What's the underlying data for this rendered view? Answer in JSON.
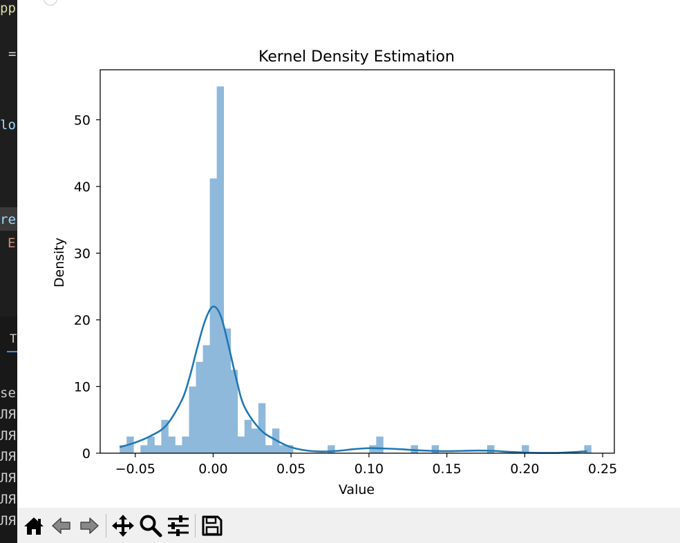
{
  "editor": {
    "fragments": [
      "pp",
      "=",
      "lo",
      "re",
      "E"
    ],
    "terminal_tab": "T",
    "terminal_lines": [
      "se",
      "ЛЯ",
      "ЛЯ",
      "ЛЯ",
      "ЛЯ",
      "ЛЯ",
      "ЛЯ"
    ]
  },
  "toolbar": {
    "buttons": [
      "home-icon",
      "back-icon",
      "forward-icon",
      "pan-icon",
      "zoom-icon",
      "configure-icon",
      "save-icon"
    ]
  },
  "chart_data": {
    "type": "bar",
    "title": "Kernel Density Estimation",
    "xlabel": "Value",
    "ylabel": "Density",
    "xlim": [
      -0.0725,
      0.2575
    ],
    "ylim": [
      0,
      57.5
    ],
    "xticks": [
      -0.05,
      0.0,
      0.05,
      0.1,
      0.15,
      0.2,
      0.25
    ],
    "xtick_labels": [
      "−0.05",
      "0.00",
      "0.05",
      "0.10",
      "0.15",
      "0.20",
      "0.25"
    ],
    "yticks": [
      0,
      10,
      20,
      30,
      40,
      50
    ],
    "ytick_labels": [
      "0",
      "10",
      "20",
      "30",
      "40",
      "50"
    ],
    "bar_color": "#8fb9da",
    "line_color": "#1f77b4",
    "histogram": {
      "bin_start": -0.06,
      "bin_width": 0.00445,
      "values": [
        1.2,
        2.5,
        0,
        1.2,
        2.5,
        1.2,
        5.0,
        2.5,
        1.2,
        2.5,
        10.0,
        13.7,
        16.2,
        41.2,
        55.0,
        18.7,
        12.5,
        2.5,
        5.0,
        3.7,
        7.5,
        1.2,
        3.7,
        1.2,
        1.2,
        0,
        0,
        0,
        0,
        0,
        1.2,
        0,
        0,
        0,
        0,
        0,
        1.2,
        2.5,
        0,
        0,
        0,
        0,
        1.2,
        0,
        0,
        1.2,
        0,
        0,
        0,
        0,
        0,
        0,
        0,
        1.2,
        0,
        0,
        0,
        0,
        1.2,
        0,
        0,
        0,
        0,
        0,
        0,
        0,
        0,
        1.2
      ]
    },
    "kde": {
      "x": [
        -0.06,
        -0.05,
        -0.04,
        -0.03,
        -0.02,
        -0.015,
        -0.01,
        -0.005,
        0.0,
        0.005,
        0.01,
        0.015,
        0.02,
        0.03,
        0.04,
        0.05,
        0.06,
        0.07,
        0.08,
        0.09,
        0.1,
        0.11,
        0.12,
        0.13,
        0.14,
        0.15,
        0.16,
        0.17,
        0.18,
        0.19,
        0.2,
        0.21,
        0.22,
        0.23,
        0.24
      ],
      "y": [
        0.9,
        1.6,
        2.6,
        4.2,
        8.0,
        11.5,
        16.0,
        20.0,
        22.0,
        20.5,
        16.0,
        11.0,
        7.0,
        3.6,
        2.0,
        0.9,
        0.4,
        0.25,
        0.35,
        0.6,
        0.75,
        0.7,
        0.6,
        0.45,
        0.35,
        0.3,
        0.35,
        0.4,
        0.35,
        0.2,
        0.1,
        0.05,
        0.05,
        0.15,
        0.3
      ]
    }
  }
}
